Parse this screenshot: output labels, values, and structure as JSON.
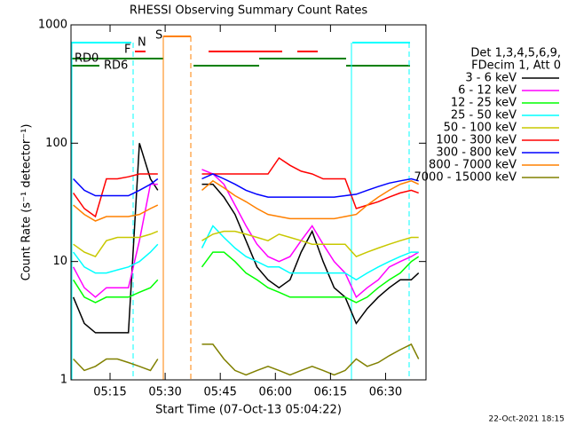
{
  "chart_data": {
    "type": "line",
    "title": "RHESSI Observing Summary Count Rates",
    "x_label": "Start Time (07-Oct-13 05:04:22)",
    "y_label": "Count Rate (s⁻¹ detector⁻¹)",
    "footer": "22-Oct-2021 18:15",
    "legend_header": [
      "Det 1,3,4,5,6,9,",
      "FDecim 1, Att 0"
    ],
    "annotations": [
      {
        "text": "S",
        "color": "#ff8000"
      },
      {
        "text": "N",
        "color": "#00e0e0"
      },
      {
        "text": "F",
        "color": "#ff0000"
      },
      {
        "text": "RD0",
        "color": "#008000"
      },
      {
        "text": "RD6",
        "color": "#008000"
      }
    ],
    "log_y": true,
    "xlim": [
      "05:04:22",
      "06:41:00"
    ],
    "xticks": [
      "05:15",
      "05:30",
      "05:45",
      "06:00",
      "06:15",
      "06:30"
    ],
    "ylim": [
      1,
      1000
    ],
    "yticks": [
      1,
      10,
      100,
      1000
    ],
    "x": [
      "05:05",
      "05:08",
      "05:11",
      "05:14",
      "05:17",
      "05:20",
      "05:23",
      "05:26",
      "05:28",
      "05:34",
      "05:40",
      "05:43",
      "05:46",
      "05:49",
      "05:52",
      "05:55",
      "05:58",
      "06:01",
      "06:04",
      "06:07",
      "06:10",
      "06:13",
      "06:16",
      "06:19",
      "06:22",
      "06:25",
      "06:28",
      "06:31",
      "06:34",
      "06:37",
      "06:39"
    ],
    "series": [
      {
        "name": "3 - 6 keV",
        "color": "#000000",
        "values": [
          5,
          3,
          2.5,
          2.5,
          2.5,
          2.5,
          100,
          50,
          40,
          null,
          45,
          45,
          35,
          25,
          15,
          9,
          7,
          6,
          7,
          12,
          18,
          10,
          6,
          5,
          3,
          4,
          5,
          6,
          7,
          7,
          8
        ]
      },
      {
        "name": "6 - 12 keV",
        "color": "#ff00ff",
        "values": [
          9,
          6,
          5,
          6,
          6,
          6,
          15,
          45,
          45,
          null,
          60,
          55,
          45,
          30,
          20,
          14,
          11,
          10,
          11,
          15,
          20,
          14,
          10,
          8,
          5,
          6,
          7,
          9,
          10,
          11,
          12
        ]
      },
      {
        "name": "12 - 25 keV",
        "color": "#00ff00",
        "values": [
          7,
          5,
          4.5,
          5,
          5,
          5,
          5.5,
          6,
          7,
          null,
          9,
          12,
          12,
          10,
          8,
          7,
          6,
          5.5,
          5,
          5,
          5,
          5,
          5,
          5,
          4.5,
          5,
          6,
          7,
          8,
          10,
          11
        ]
      },
      {
        "name": "25 - 50 keV",
        "color": "#00ffff",
        "values": [
          12,
          9,
          8,
          8,
          8.5,
          9,
          10,
          12,
          14,
          null,
          13,
          20,
          16,
          13,
          11,
          10,
          9,
          9,
          8,
          8,
          8,
          8,
          8,
          8,
          7,
          8,
          9,
          10,
          11,
          12,
          12
        ]
      },
      {
        "name": "50 - 100 keV",
        "color": "#c8c800",
        "values": [
          14,
          12,
          11,
          15,
          16,
          16,
          16,
          17,
          18,
          null,
          15,
          17,
          18,
          18,
          17,
          16,
          15,
          17,
          16,
          15,
          14,
          14,
          14,
          14,
          11,
          12,
          13,
          14,
          15,
          16,
          16
        ]
      },
      {
        "name": "100 - 300 keV",
        "color": "#ff0000",
        "values": [
          38,
          28,
          24,
          50,
          50,
          52,
          55,
          55,
          55,
          null,
          55,
          55,
          55,
          55,
          55,
          55,
          55,
          75,
          65,
          58,
          55,
          50,
          50,
          50,
          28,
          30,
          32,
          35,
          38,
          40,
          38
        ]
      },
      {
        "name": "300 - 800 keV",
        "color": "#0000ff",
        "values": [
          50,
          40,
          36,
          36,
          36,
          36,
          40,
          45,
          50,
          null,
          50,
          55,
          50,
          45,
          40,
          37,
          35,
          35,
          35,
          35,
          35,
          35,
          35,
          36,
          37,
          40,
          43,
          46,
          48,
          50,
          48
        ]
      },
      {
        "name": "800 - 7000 keV",
        "color": "#ff8000",
        "values": [
          30,
          25,
          22,
          24,
          24,
          24,
          25,
          28,
          30,
          null,
          40,
          48,
          42,
          36,
          32,
          28,
          25,
          24,
          23,
          23,
          23,
          23,
          23,
          24,
          25,
          30,
          35,
          40,
          45,
          48,
          45
        ]
      },
      {
        "name": "7000 - 15000 keV",
        "color": "#808000",
        "values": [
          1.5,
          1.2,
          1.3,
          1.5,
          1.5,
          1.4,
          1.3,
          1.2,
          1.5,
          null,
          2,
          2,
          1.5,
          1.2,
          1.1,
          1.2,
          1.3,
          1.2,
          1.1,
          1.2,
          1.3,
          1.2,
          1.1,
          1.2,
          1.5,
          1.3,
          1.4,
          1.6,
          1.8,
          2,
          1.5
        ]
      }
    ]
  }
}
